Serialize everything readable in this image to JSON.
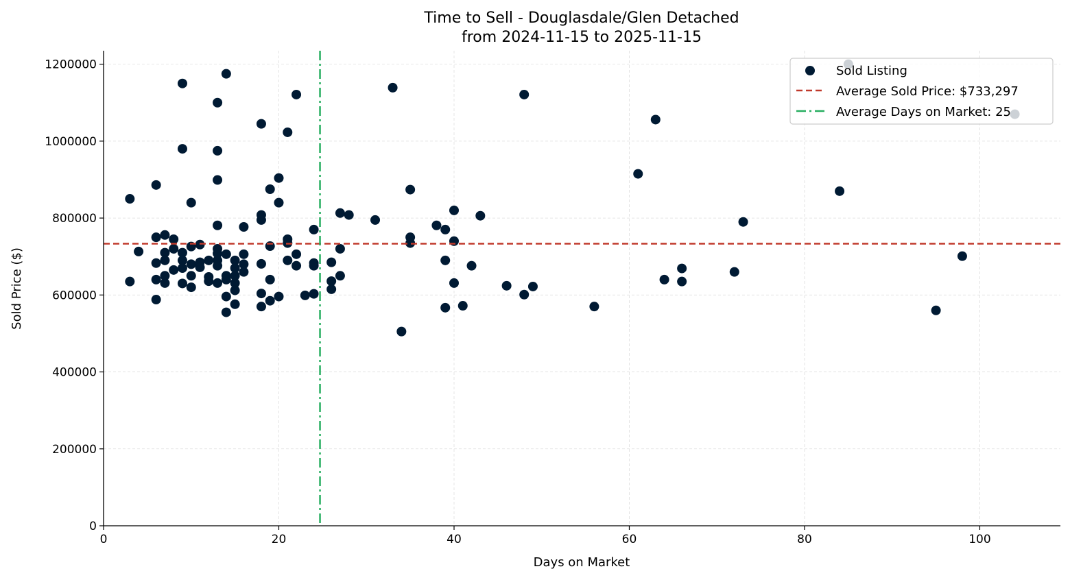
{
  "chart_data": {
    "type": "scatter",
    "title": "Time to Sell - Douglasdale/Glen Detached",
    "subtitle": "from 2024-11-15 to 2025-11-15",
    "xlabel": "Days on Market",
    "ylabel": "Sold Price ($)",
    "xlim": [
      0,
      109.2
    ],
    "ylim": [
      0,
      1235000
    ],
    "xticks": [
      0,
      20,
      40,
      60,
      80,
      100
    ],
    "yticks": [
      0,
      200000,
      400000,
      600000,
      800000,
      1000000,
      1200000
    ],
    "xtick_labels": [
      "0",
      "20",
      "40",
      "60",
      "80",
      "100"
    ],
    "ytick_labels": [
      "0",
      "200000",
      "400000",
      "600000",
      "800000",
      "1000000",
      "1200000"
    ],
    "grid": true,
    "legend_placement": "top-right",
    "colors": {
      "points": "#001a33",
      "avg_price": "#c0392b",
      "avg_days": "#27ae60"
    },
    "series": [
      {
        "name": "Sold Listing",
        "points": [
          [
            3,
            850000
          ],
          [
            3,
            635000
          ],
          [
            4,
            713000
          ],
          [
            6,
            886000
          ],
          [
            6,
            750000
          ],
          [
            6,
            683000
          ],
          [
            6,
            640000
          ],
          [
            6,
            588000
          ],
          [
            7,
            756000
          ],
          [
            7,
            710000
          ],
          [
            7,
            690000
          ],
          [
            7,
            650000
          ],
          [
            7,
            631000
          ],
          [
            8,
            745000
          ],
          [
            8,
            720000
          ],
          [
            8,
            665000
          ],
          [
            9,
            1150000
          ],
          [
            9,
            980000
          ],
          [
            9,
            710000
          ],
          [
            9,
            690000
          ],
          [
            9,
            670000
          ],
          [
            9,
            630000
          ],
          [
            10,
            840000
          ],
          [
            10,
            726000
          ],
          [
            10,
            680000
          ],
          [
            10,
            650000
          ],
          [
            10,
            620000
          ],
          [
            11,
            731000
          ],
          [
            11,
            685000
          ],
          [
            11,
            672000
          ],
          [
            12,
            690000
          ],
          [
            12,
            647000
          ],
          [
            12,
            636000
          ],
          [
            13,
            1100000
          ],
          [
            13,
            975000
          ],
          [
            13,
            899000
          ],
          [
            13,
            781000
          ],
          [
            13,
            720000
          ],
          [
            13,
            708000
          ],
          [
            13,
            690000
          ],
          [
            13,
            676000
          ],
          [
            13,
            631000
          ],
          [
            14,
            1175000
          ],
          [
            14,
            706000
          ],
          [
            14,
            650000
          ],
          [
            14,
            640000
          ],
          [
            14,
            596000
          ],
          [
            14,
            555000
          ],
          [
            15,
            690000
          ],
          [
            15,
            670000
          ],
          [
            15,
            650000
          ],
          [
            15,
            631000
          ],
          [
            15,
            612000
          ],
          [
            15,
            576000
          ],
          [
            16,
            777000
          ],
          [
            16,
            706000
          ],
          [
            16,
            680000
          ],
          [
            16,
            660000
          ],
          [
            18,
            1045000
          ],
          [
            18,
            808000
          ],
          [
            18,
            795000
          ],
          [
            18,
            681000
          ],
          [
            18,
            604000
          ],
          [
            18,
            570000
          ],
          [
            19,
            875000
          ],
          [
            19,
            727000
          ],
          [
            19,
            640000
          ],
          [
            19,
            585000
          ],
          [
            20,
            904000
          ],
          [
            20,
            840000
          ],
          [
            20,
            596000
          ],
          [
            21,
            1023000
          ],
          [
            21,
            745000
          ],
          [
            21,
            735000
          ],
          [
            21,
            690000
          ],
          [
            22,
            1121000
          ],
          [
            22,
            706000
          ],
          [
            22,
            676000
          ],
          [
            23,
            599000
          ],
          [
            24,
            770000
          ],
          [
            24,
            683000
          ],
          [
            24,
            676000
          ],
          [
            24,
            603000
          ],
          [
            26,
            685000
          ],
          [
            26,
            636000
          ],
          [
            26,
            615000
          ],
          [
            27,
            813000
          ],
          [
            27,
            720000
          ],
          [
            27,
            650000
          ],
          [
            28,
            808000
          ],
          [
            31,
            795000
          ],
          [
            33,
            1139000
          ],
          [
            34,
            505000
          ],
          [
            35,
            874000
          ],
          [
            35,
            750000
          ],
          [
            35,
            735000
          ],
          [
            38,
            781000
          ],
          [
            39,
            770000
          ],
          [
            39,
            690000
          ],
          [
            39,
            567000
          ],
          [
            40,
            820000
          ],
          [
            40,
            740000
          ],
          [
            40,
            631000
          ],
          [
            41,
            572000
          ],
          [
            42,
            676000
          ],
          [
            43,
            806000
          ],
          [
            46,
            624000
          ],
          [
            48,
            1121000
          ],
          [
            48,
            601000
          ],
          [
            49,
            622000
          ],
          [
            56,
            570000
          ],
          [
            61,
            915000
          ],
          [
            63,
            1056000
          ],
          [
            64,
            640000
          ],
          [
            66,
            669000
          ],
          [
            66,
            635000
          ],
          [
            72,
            660000
          ],
          [
            73,
            790000
          ],
          [
            84,
            870000
          ],
          [
            85,
            1200000
          ],
          [
            95,
            560000
          ],
          [
            98,
            701000
          ],
          [
            104,
            1070000
          ]
        ]
      }
    ],
    "avg_price": {
      "value": 733297,
      "label": "Average Sold Price: $733,297"
    },
    "avg_days": {
      "value": 24.7,
      "label": "Average Days on Market: 25"
    }
  }
}
